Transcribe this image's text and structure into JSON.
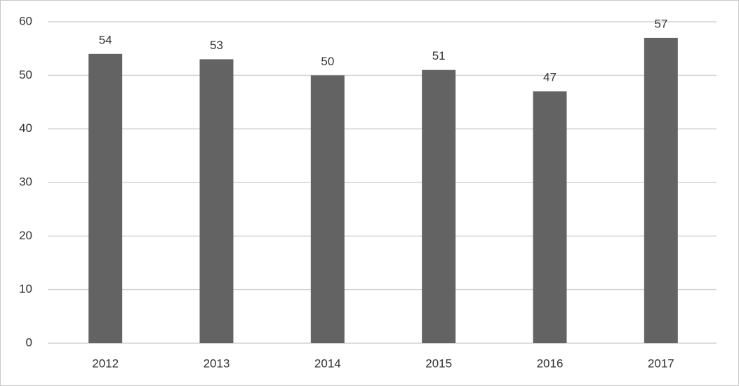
{
  "chart_data": {
    "type": "bar",
    "categories": [
      "2012",
      "2013",
      "2014",
      "2015",
      "2016",
      "2017"
    ],
    "values": [
      54,
      53,
      50,
      51,
      47,
      57
    ],
    "color": "#636363",
    "ylim": [
      0,
      60
    ],
    "yticks": [
      0,
      10,
      20,
      30,
      40,
      50,
      60
    ],
    "grid": true
  }
}
